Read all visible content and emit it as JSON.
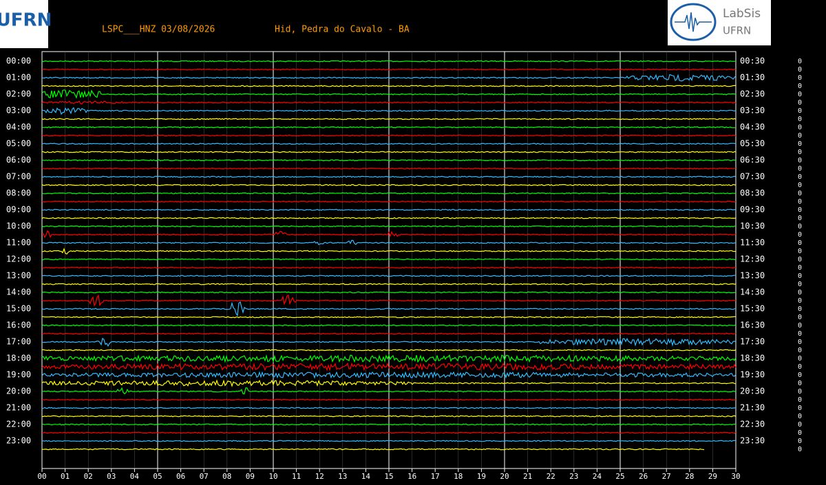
{
  "header": {
    "logo_left": "UFRN",
    "station": "LSPC___HNZ 03/08/2026",
    "location": "Hid, Pedra do Cavalo - BA",
    "logo_right_title": "LabSis",
    "logo_right_subtitle": "UFRN"
  },
  "left_labels": [
    "00:00",
    "01:00",
    "02:00",
    "03:00",
    "04:00",
    "05:00",
    "06:00",
    "07:00",
    "08:00",
    "09:00",
    "10:00",
    "11:00",
    "12:00",
    "13:00",
    "14:00",
    "15:00",
    "16:00",
    "17:00",
    "18:00",
    "19:00",
    "20:00",
    "21:00",
    "22:00",
    "23:00"
  ],
  "right_labels": [
    "00:30",
    "01:30",
    "02:30",
    "03:30",
    "04:30",
    "05:30",
    "06:30",
    "07:30",
    "08:30",
    "09:30",
    "10:30",
    "11:30",
    "12:30",
    "13:30",
    "14:30",
    "15:30",
    "16:30",
    "17:30",
    "18:30",
    "19:30",
    "20:30",
    "21:30",
    "22:30",
    "23:30"
  ],
  "x_labels": [
    "00",
    "01",
    "02",
    "03",
    "04",
    "05",
    "06",
    "07",
    "08",
    "09",
    "10",
    "11",
    "12",
    "13",
    "14",
    "15",
    "16",
    "17",
    "18",
    "19",
    "20",
    "21",
    "22",
    "23",
    "24",
    "25",
    "26",
    "27",
    "28",
    "29",
    "30"
  ],
  "right_column": [
    0,
    0,
    0,
    0,
    0,
    0,
    0,
    0,
    0,
    0,
    0,
    0,
    0,
    0,
    0,
    0,
    0,
    0,
    0,
    0,
    0,
    0,
    0,
    0,
    0,
    0,
    0,
    0,
    0,
    0,
    0,
    0,
    0,
    0,
    0,
    0,
    0,
    0,
    0,
    0,
    0,
    0,
    0,
    0,
    0,
    0,
    0,
    0
  ]
}
